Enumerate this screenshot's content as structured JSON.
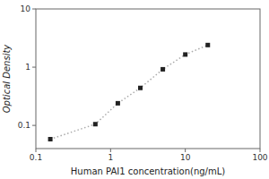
{
  "chart_data": {
    "type": "line",
    "x": [
      0.156,
      0.625,
      1.25,
      2.5,
      5.0,
      10.0,
      20.0
    ],
    "values": [
      0.058,
      0.105,
      0.24,
      0.44,
      0.92,
      1.65,
      2.4
    ],
    "xlabel": "Human PAI1 concentration(ng/mL)",
    "ylabel": "Optical Density",
    "log": true,
    "xlim": [
      0.1,
      100
    ],
    "ylim": [
      0.04,
      10
    ],
    "xticks": [
      0.1,
      1,
      10,
      100
    ],
    "yticks": [
      0.1,
      1,
      10
    ],
    "color": "#aaaaaa",
    "marker": "square",
    "line_style": "dotted",
    "grid": false
  }
}
